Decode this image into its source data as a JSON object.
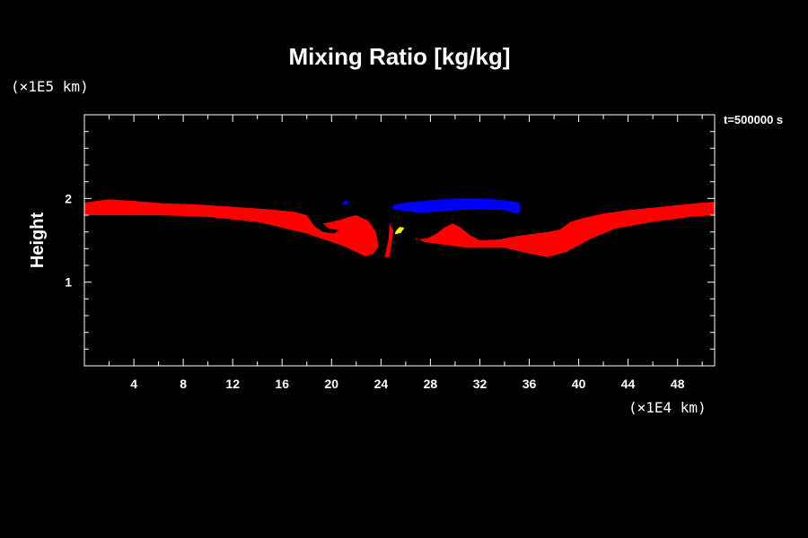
{
  "chart_data": {
    "type": "heatmap",
    "title": "Mixing Ratio [kg/kg]",
    "xlabel": "",
    "ylabel": "Height",
    "x_unit": "(×1E4 km)",
    "y_unit": "(×1E5 km)",
    "time_label": "t=500000 s",
    "xlim": [
      0,
      51
    ],
    "ylim": [
      0,
      3
    ],
    "x_ticks": [
      4,
      8,
      12,
      16,
      20,
      24,
      28,
      32,
      36,
      40,
      44,
      48
    ],
    "y_ticks": [
      1,
      2
    ],
    "x_minor_step": 2,
    "y_minor_step": 0.2,
    "colors": {
      "red": "#ff0000",
      "blue": "#0000ff",
      "yellow": "#ffff00",
      "background": "#000000",
      "frame": "#ffffff"
    },
    "regions": [
      {
        "name": "left-red-band",
        "color": "#ff0000",
        "points": [
          [
            0,
            1.8
          ],
          [
            2,
            1.8
          ],
          [
            6,
            1.8
          ],
          [
            10,
            1.78
          ],
          [
            14,
            1.72
          ],
          [
            16,
            1.65
          ],
          [
            18,
            1.58
          ],
          [
            19,
            1.53
          ],
          [
            20,
            1.48
          ],
          [
            21,
            1.43
          ],
          [
            22,
            1.36
          ],
          [
            22.7,
            1.31
          ],
          [
            23.3,
            1.33
          ],
          [
            23.8,
            1.42
          ],
          [
            23.6,
            1.6
          ],
          [
            23.0,
            1.73
          ],
          [
            22.0,
            1.8
          ],
          [
            21.4,
            1.78
          ],
          [
            20.6,
            1.74
          ],
          [
            20.0,
            1.72
          ],
          [
            19.3,
            1.7
          ],
          [
            19.8,
            1.64
          ],
          [
            20.6,
            1.62
          ],
          [
            20.2,
            1.58
          ],
          [
            19.3,
            1.6
          ],
          [
            18.6,
            1.67
          ],
          [
            18.0,
            1.8
          ],
          [
            17.0,
            1.84
          ],
          [
            15.0,
            1.87
          ],
          [
            13.0,
            1.89
          ],
          [
            11.0,
            1.91
          ],
          [
            9.0,
            1.93
          ],
          [
            6.5,
            1.94
          ],
          [
            4.0,
            1.97
          ],
          [
            2.0,
            1.99
          ],
          [
            0,
            1.95
          ]
        ]
      },
      {
        "name": "center-red-filament",
        "color": "#ff0000",
        "points": [
          [
            24.3,
            1.3
          ],
          [
            24.7,
            1.3
          ],
          [
            24.9,
            1.5
          ],
          [
            25.0,
            1.62
          ],
          [
            24.7,
            1.7
          ],
          [
            24.6,
            1.5
          ]
        ]
      },
      {
        "name": "right-red-band",
        "color": "#ff0000",
        "points": [
          [
            51,
            1.8
          ],
          [
            49,
            1.78
          ],
          [
            46,
            1.72
          ],
          [
            43,
            1.64
          ],
          [
            41,
            1.52
          ],
          [
            40,
            1.44
          ],
          [
            39,
            1.36
          ],
          [
            37.5,
            1.3
          ],
          [
            36,
            1.34
          ],
          [
            34,
            1.41
          ],
          [
            31,
            1.41
          ],
          [
            29,
            1.45
          ],
          [
            27.5,
            1.48
          ],
          [
            26.8,
            1.53
          ],
          [
            26.8,
            1.51
          ],
          [
            27.7,
            1.52
          ],
          [
            28.5,
            1.58
          ],
          [
            29.2,
            1.66
          ],
          [
            29.8,
            1.7
          ],
          [
            30.4,
            1.66
          ],
          [
            31.2,
            1.56
          ],
          [
            32.0,
            1.5
          ],
          [
            33.5,
            1.51
          ],
          [
            35.0,
            1.55
          ],
          [
            36.5,
            1.58
          ],
          [
            37.5,
            1.6
          ],
          [
            38.5,
            1.63
          ],
          [
            39.3,
            1.72
          ],
          [
            40.5,
            1.77
          ],
          [
            42,
            1.82
          ],
          [
            44,
            1.86
          ],
          [
            46,
            1.89
          ],
          [
            48,
            1.92
          ],
          [
            50,
            1.95
          ],
          [
            51,
            1.96
          ]
        ]
      },
      {
        "name": "top-blue-cloud",
        "color": "#0000ff",
        "points": [
          [
            25.0,
            1.92
          ],
          [
            26.0,
            1.95
          ],
          [
            28.0,
            1.98
          ],
          [
            30.0,
            2.0
          ],
          [
            32.0,
            2.0
          ],
          [
            34.0,
            1.98
          ],
          [
            35.2,
            1.95
          ],
          [
            35.3,
            1.84
          ],
          [
            35.0,
            1.82
          ],
          [
            34.0,
            1.86
          ],
          [
            32.0,
            1.87
          ],
          [
            30.0,
            1.86
          ],
          [
            28.5,
            1.84
          ],
          [
            27.0,
            1.83
          ],
          [
            26.0,
            1.85
          ],
          [
            25.0,
            1.87
          ]
        ]
      },
      {
        "name": "small-blue-blob",
        "color": "#0000ff",
        "points": [
          [
            20.8,
            1.94
          ],
          [
            21.2,
            1.98
          ],
          [
            21.5,
            1.95
          ],
          [
            21.1,
            1.92
          ]
        ]
      },
      {
        "name": "yellow-spot",
        "color": "#ffff00",
        "points": [
          [
            25.1,
            1.57
          ],
          [
            25.6,
            1.59
          ],
          [
            25.9,
            1.65
          ],
          [
            25.5,
            1.66
          ],
          [
            25.2,
            1.61
          ]
        ]
      }
    ]
  }
}
